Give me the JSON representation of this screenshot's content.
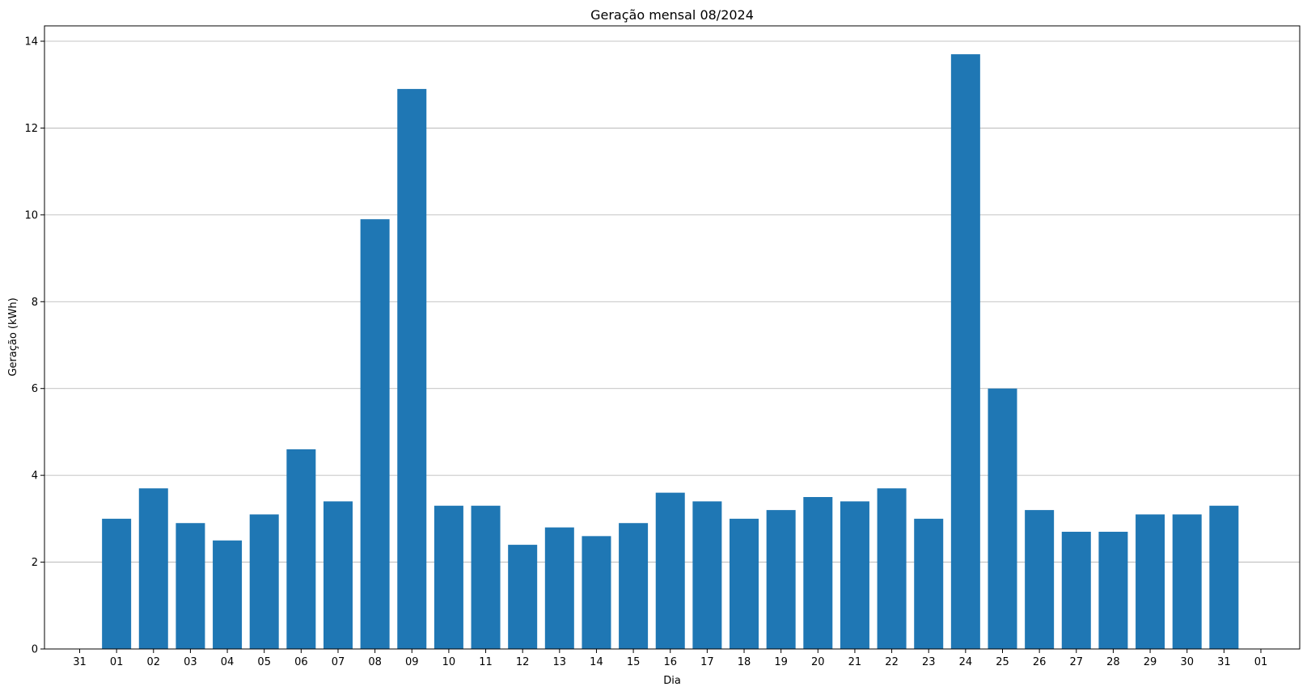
{
  "chart_data": {
    "type": "bar",
    "title": "Geração mensal 08/2024",
    "xlabel": "Dia",
    "ylabel": "Geração (kWh)",
    "ylim": [
      0,
      14.4
    ],
    "yticks": [
      0,
      2,
      4,
      6,
      8,
      10,
      12,
      14
    ],
    "grid": "y",
    "color": "#1f77b4",
    "x_tick_labels": [
      "31",
      "01",
      "02",
      "03",
      "04",
      "05",
      "06",
      "07",
      "08",
      "09",
      "10",
      "11",
      "12",
      "13",
      "14",
      "15",
      "16",
      "17",
      "18",
      "19",
      "20",
      "21",
      "22",
      "23",
      "24",
      "25",
      "26",
      "27",
      "28",
      "29",
      "30",
      "31",
      "01"
    ],
    "categories": [
      "01",
      "02",
      "03",
      "04",
      "05",
      "06",
      "07",
      "08",
      "09",
      "10",
      "11",
      "12",
      "13",
      "14",
      "15",
      "16",
      "17",
      "18",
      "19",
      "20",
      "21",
      "22",
      "23",
      "24",
      "25",
      "26",
      "27",
      "28",
      "29",
      "30",
      "31"
    ],
    "values": [
      3.0,
      3.7,
      2.9,
      2.5,
      3.1,
      4.6,
      3.4,
      9.9,
      12.9,
      3.3,
      3.3,
      2.4,
      2.8,
      2.6,
      2.9,
      3.6,
      3.4,
      3.0,
      3.2,
      3.5,
      3.4,
      3.7,
      3.0,
      13.7,
      6.0,
      3.2,
      2.7,
      2.7,
      3.1,
      3.1,
      3.3
    ]
  }
}
